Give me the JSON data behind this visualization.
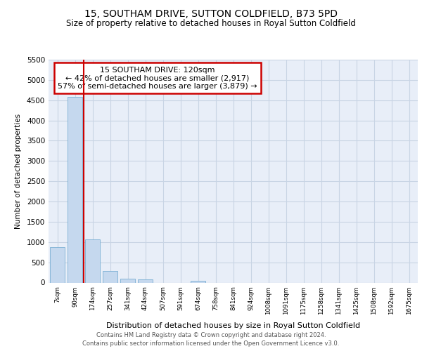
{
  "title_line1": "15, SOUTHAM DRIVE, SUTTON COLDFIELD, B73 5PD",
  "title_line2": "Size of property relative to detached houses in Royal Sutton Coldfield",
  "xlabel": "Distribution of detached houses by size in Royal Sutton Coldfield",
  "ylabel": "Number of detached properties",
  "footer_line1": "Contains HM Land Registry data © Crown copyright and database right 2024.",
  "footer_line2": "Contains public sector information licensed under the Open Government Licence v3.0.",
  "annotation_line1": "15 SOUTHAM DRIVE: 120sqm",
  "annotation_line2": "← 42% of detached houses are smaller (2,917)",
  "annotation_line3": "57% of semi-detached houses are larger (3,879) →",
  "bar_color": "#c5d8ee",
  "bar_edge_color": "#7aafd4",
  "vline_color": "#cc0000",
  "annotation_box_edge_color": "#cc0000",
  "grid_color": "#c8d4e4",
  "bg_color": "#e8eef8",
  "categories": [
    "7sqm",
    "90sqm",
    "174sqm",
    "257sqm",
    "341sqm",
    "424sqm",
    "507sqm",
    "591sqm",
    "674sqm",
    "758sqm",
    "841sqm",
    "924sqm",
    "1008sqm",
    "1091sqm",
    "1175sqm",
    "1258sqm",
    "1341sqm",
    "1425sqm",
    "1508sqm",
    "1592sqm",
    "1675sqm"
  ],
  "values": [
    880,
    4580,
    1060,
    285,
    95,
    75,
    0,
    0,
    50,
    0,
    0,
    0,
    0,
    0,
    0,
    0,
    0,
    0,
    0,
    0,
    0
  ],
  "ylim": [
    0,
    5500
  ],
  "yticks": [
    0,
    500,
    1000,
    1500,
    2000,
    2500,
    3000,
    3500,
    4000,
    4500,
    5000,
    5500
  ],
  "vline_x_index": 1.5,
  "fig_width": 6.0,
  "fig_height": 5.0,
  "dpi": 100
}
